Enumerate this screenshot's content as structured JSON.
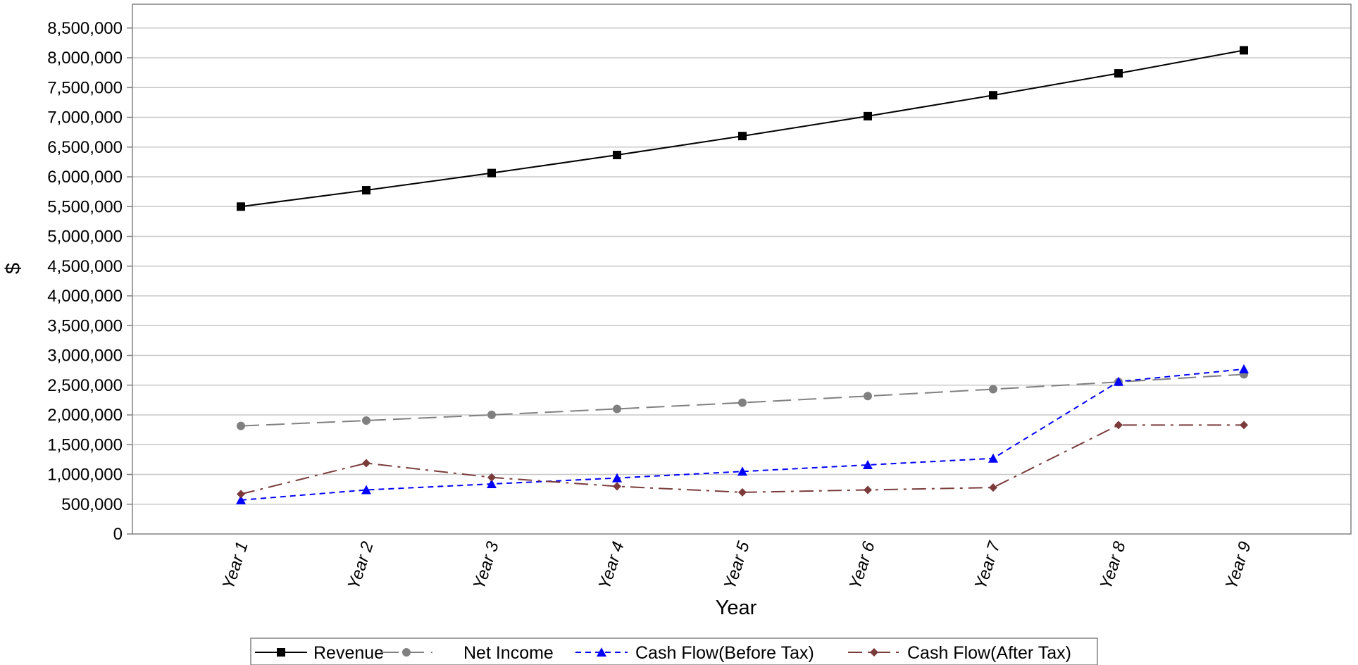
{
  "chart_data": {
    "type": "line",
    "title": "",
    "xlabel": "Year",
    "ylabel": "$",
    "categories": [
      "Year 1",
      "Year 2",
      "Year 3",
      "Year 4",
      "Year 5",
      "Year 6",
      "Year 7",
      "Year 8",
      "Year 9"
    ],
    "ylim": [
      0,
      8500000
    ],
    "yticks": [
      0,
      500000,
      1000000,
      1500000,
      2000000,
      2500000,
      3000000,
      3500000,
      4000000,
      4500000,
      5000000,
      5500000,
      6000000,
      6500000,
      7000000,
      7500000,
      8000000,
      8500000
    ],
    "ytick_labels": [
      "0",
      "500,000",
      "1,000,000",
      "1,500,000",
      "2,000,000",
      "2,500,000",
      "3,000,000",
      "3,500,000",
      "4,000,000",
      "4,500,000",
      "5,000,000",
      "5,500,000",
      "6,000,000",
      "6,500,000",
      "7,000,000",
      "7,500,000",
      "8,000,000",
      "8,500,000"
    ],
    "grid": true,
    "legend_position": "bottom",
    "series": [
      {
        "name": "Revenue",
        "color": "#000000",
        "marker": "square",
        "dash": "solid",
        "values": [
          5500000,
          5775000,
          6063750,
          6366938,
          6685284,
          7019549,
          7370526,
          7739052,
          8126005
        ]
      },
      {
        "name": "Net Income",
        "color": "#808080",
        "marker": "circle",
        "dash": "long-dash",
        "values": [
          1815000,
          1905750,
          2001038,
          2101089,
          2206144,
          2316451,
          2432274,
          2553888,
          2681582
        ]
      },
      {
        "name": "Cash Flow(Before Tax)",
        "color": "#0000ff",
        "marker": "triangle",
        "dash": "short-dash",
        "values": [
          570000,
          740000,
          840000,
          940000,
          1050000,
          1160000,
          1270000,
          2560000,
          2770000
        ]
      },
      {
        "name": "Cash Flow(After Tax)",
        "color": "#7b3b3b",
        "marker": "diamond",
        "dash": "dash-dot",
        "values": [
          670000,
          1190000,
          950000,
          800000,
          700000,
          740000,
          780000,
          1830000,
          1830000
        ]
      }
    ]
  }
}
